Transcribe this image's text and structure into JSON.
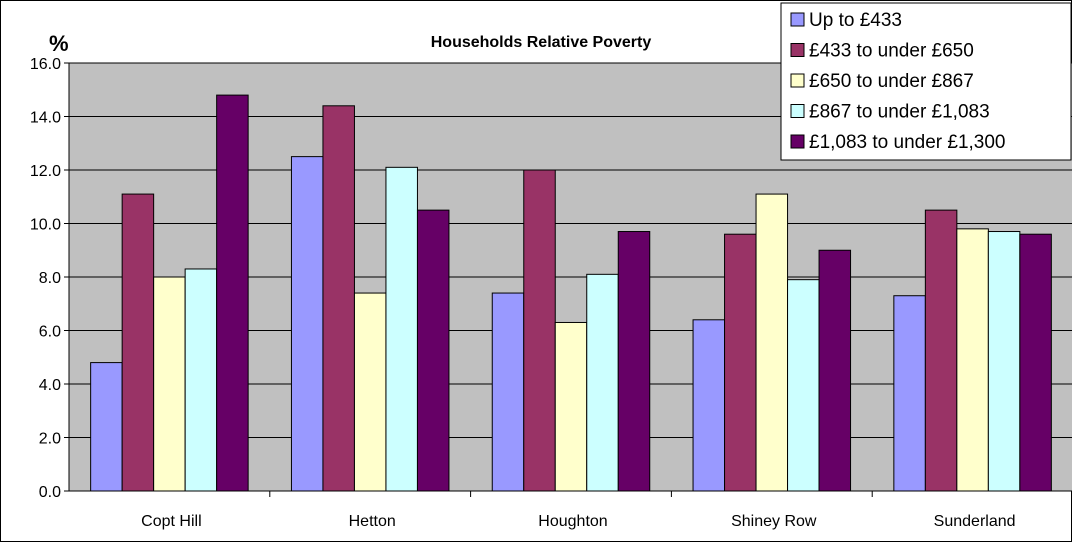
{
  "chart_data": {
    "type": "bar",
    "title": "Households Relative Poverty",
    "ylabel": "%",
    "xlabel": "",
    "ylim": [
      0,
      16
    ],
    "yticks": [
      "0.0",
      "2.0",
      "4.0",
      "6.0",
      "8.0",
      "10.0",
      "12.0",
      "14.0",
      "16.0"
    ],
    "grid": true,
    "legend_position": "top-right",
    "categories": [
      "Copt Hill",
      "Hetton",
      "Houghton",
      "Shiney Row",
      "Sunderland"
    ],
    "series": [
      {
        "name": "Up to £433",
        "color": "#9999ff",
        "values": [
          4.8,
          12.5,
          7.4,
          6.4,
          7.3
        ]
      },
      {
        "name": "£433 to under £650",
        "color": "#993366",
        "values": [
          11.1,
          14.4,
          12.0,
          9.6,
          10.5
        ]
      },
      {
        "name": "£650 to under £867",
        "color": "#ffffcc",
        "values": [
          8.0,
          7.4,
          6.3,
          11.1,
          9.8
        ]
      },
      {
        "name": "£867 to under £1,083",
        "color": "#ccffff",
        "values": [
          8.3,
          12.1,
          8.1,
          7.9,
          9.7
        ]
      },
      {
        "name": "£1,083 to under £1,300",
        "color": "#660066",
        "values": [
          14.8,
          10.5,
          9.7,
          9.0,
          9.6
        ]
      }
    ],
    "plot_background": "#c0c0c0"
  }
}
